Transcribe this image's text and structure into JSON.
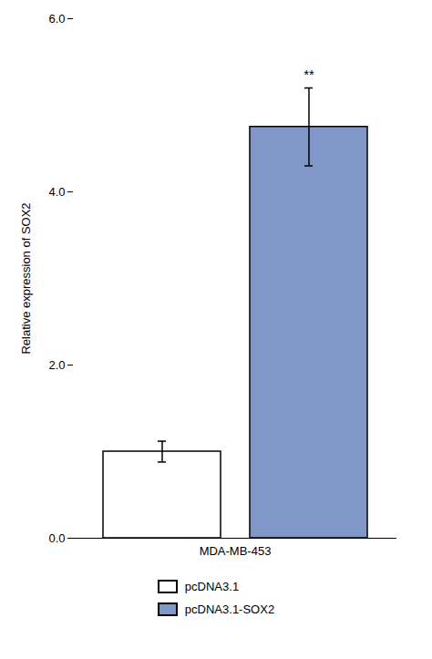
{
  "chart_data": {
    "type": "bar",
    "categories": [
      "MDA-MB-453"
    ],
    "series": [
      {
        "name": "pcDNA3.1",
        "color": "#ffffff",
        "values": [
          1.0
        ],
        "errors": [
          0.12
        ]
      },
      {
        "name": "pcDNA3.1-SOX2",
        "color": "#8098c8",
        "values": [
          4.75
        ],
        "errors": [
          0.45
        ]
      }
    ],
    "ylabel": "Relative expression of SOX2",
    "ylim": [
      0,
      6
    ],
    "yticks": [
      0,
      2,
      4,
      6
    ],
    "annotations": [
      {
        "text": "**",
        "category": "MDA-MB-453",
        "series": "pcDNA3.1-SOX2",
        "y": 5.3
      }
    ],
    "legend": "bottom",
    "grid": false
  }
}
